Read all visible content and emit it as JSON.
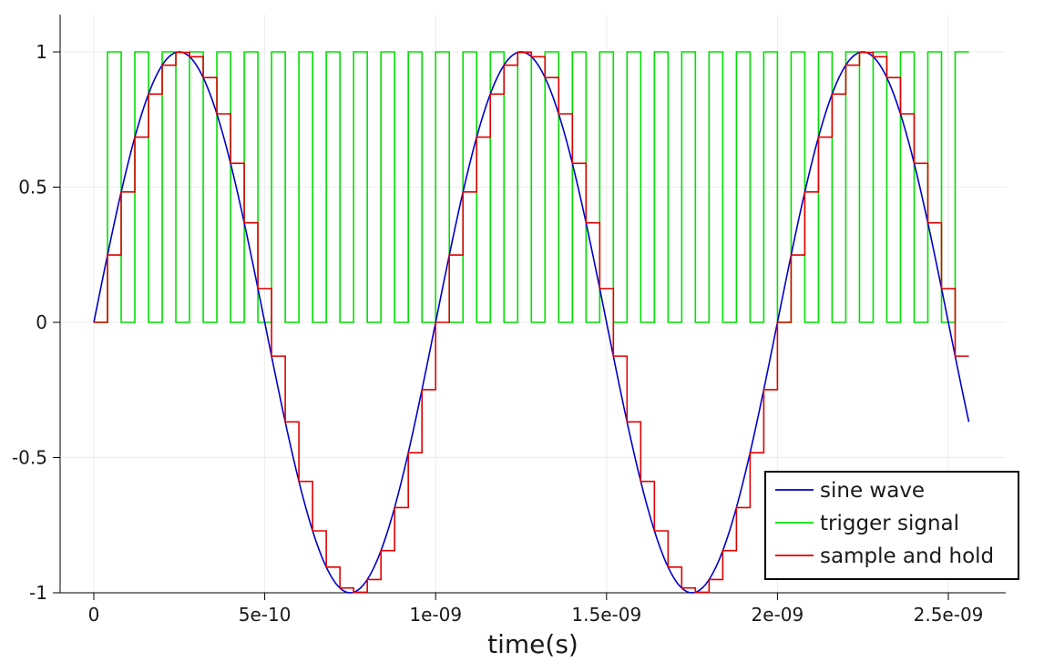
{
  "chart_data": {
    "type": "line",
    "title": "",
    "xlabel": "time(s)",
    "ylabel": "",
    "xlim": [
      -1e-10,
      2.66e-09
    ],
    "ylim": [
      -1,
      1.04
    ],
    "grid": true,
    "legend_position": "bottom-right",
    "x_ticks": [
      {
        "value": 0,
        "label": "0"
      },
      {
        "value": 5e-10,
        "label": "5e-10"
      },
      {
        "value": 1e-09,
        "label": "1e-09"
      },
      {
        "value": 1.5e-09,
        "label": "1.5e-09"
      },
      {
        "value": 2e-09,
        "label": "2e-09"
      },
      {
        "value": 2.5e-09,
        "label": "2.5e-09"
      }
    ],
    "y_ticks": [
      {
        "value": 1,
        "label": "1"
      },
      {
        "value": 0.5,
        "label": "0.5"
      },
      {
        "value": 0,
        "label": "0"
      },
      {
        "value": -0.5,
        "label": "-0.5"
      },
      {
        "value": -1,
        "label": "-1"
      }
    ],
    "series": [
      {
        "name": "sine wave",
        "kind": "line",
        "color": "#0000cc",
        "function": "sin",
        "frequency_hz": 1000000000,
        "amplitude": 1,
        "x_range": [
          0,
          2.56e-09
        ]
      },
      {
        "name": "trigger signal",
        "kind": "square",
        "color": "#00e000",
        "period_s": 8e-11,
        "first_rise_s": 4e-11,
        "high": 1,
        "low": 0,
        "x_range": [
          0,
          2.56e-09
        ]
      },
      {
        "name": "sample and hold",
        "kind": "step",
        "color": "#e00000",
        "x": [
          0,
          4e-11,
          8e-11,
          1.2e-10,
          1.6e-10,
          2e-10,
          2.4e-10,
          2.8e-10,
          3.2e-10,
          3.6e-10,
          4e-10,
          4.4e-10,
          4.8e-10,
          5.2e-10,
          5.6e-10,
          6e-10,
          6.4e-10,
          6.8e-10,
          7.2e-10,
          7.6e-10,
          8e-10,
          8.4e-10,
          8.8e-10,
          9.2e-10,
          9.6e-10,
          1e-09,
          1.04e-09,
          1.08e-09,
          1.12e-09,
          1.16e-09,
          1.2e-09,
          1.24e-09,
          1.28e-09,
          1.32e-09,
          1.36e-09,
          1.4e-09,
          1.44e-09,
          1.48e-09,
          1.52e-09,
          1.56e-09,
          1.6e-09,
          1.64e-09,
          1.68e-09,
          1.72e-09,
          1.76e-09,
          1.8e-09,
          1.84e-09,
          1.88e-09,
          1.92e-09,
          1.96e-09,
          2e-09,
          2.04e-09,
          2.08e-09,
          2.12e-09,
          2.16e-09,
          2.2e-09,
          2.24e-09,
          2.28e-09,
          2.32e-09,
          2.36e-09,
          2.4e-09,
          2.44e-09,
          2.48e-09,
          2.52e-09,
          2.56e-09
        ],
        "y": [
          0,
          0.249,
          0.482,
          0.685,
          0.844,
          0.951,
          0.998,
          0.982,
          0.905,
          0.771,
          0.588,
          0.368,
          0.125,
          -0.125,
          -0.368,
          -0.588,
          -0.771,
          -0.905,
          -0.982,
          -0.998,
          -0.951,
          -0.844,
          -0.685,
          -0.482,
          -0.249,
          0,
          0.249,
          0.482,
          0.685,
          0.844,
          0.951,
          0.998,
          0.982,
          0.905,
          0.771,
          0.588,
          0.368,
          0.125,
          -0.125,
          -0.368,
          -0.588,
          -0.771,
          -0.905,
          -0.982,
          -0.998,
          -0.951,
          -0.844,
          -0.685,
          -0.482,
          -0.249,
          0,
          0.249,
          0.482,
          0.685,
          0.844,
          0.951,
          0.998,
          0.982,
          0.905,
          0.771,
          0.588,
          0.368,
          0.125,
          -0.125,
          -0.125
        ]
      }
    ]
  }
}
